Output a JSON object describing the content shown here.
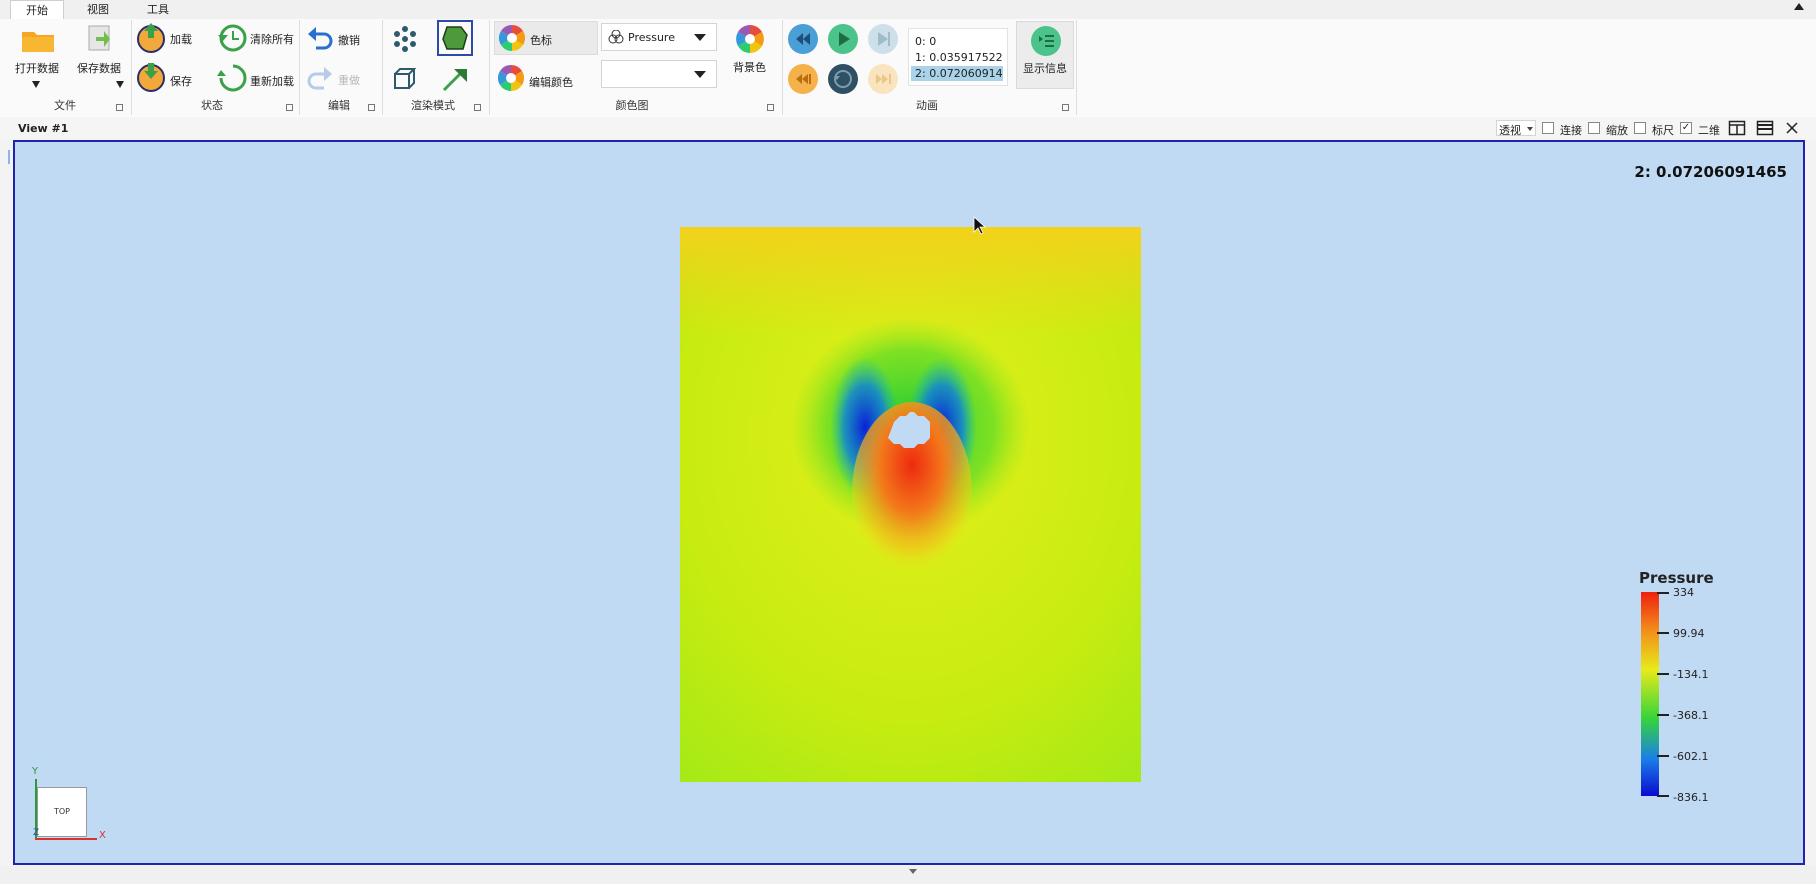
{
  "tabs": [
    "开始",
    "视图",
    "工具"
  ],
  "file_group": {
    "open_label": "打开数据",
    "save_data_label": "保存数据",
    "group_label": "文件"
  },
  "state_group": {
    "load_label": "加载",
    "clear_all_label": "清除所有",
    "save_label": "保存",
    "reload_label": "重新加载",
    "group_label": "状态"
  },
  "edit_group": {
    "undo_label": "撤销",
    "redo_label": "重做",
    "group_label": "编辑"
  },
  "render_group": {
    "group_label": "渲染模式"
  },
  "colormap_group": {
    "colorbar_label": "色标",
    "edit_color_label": "编辑颜色",
    "field_selected": "Pressure",
    "component_selected": "",
    "bg_color_label": "背景色",
    "group_label": "颜色图"
  },
  "animation_group": {
    "group_label": "动画",
    "show_info_label": "显示信息",
    "timesteps": [
      "0: 0",
      "1: 0.035917522...",
      "2: 0.072060914..."
    ],
    "selected_index": 2
  },
  "view": {
    "title": "View #1",
    "projection": "透视",
    "options": [
      {
        "label": "连接",
        "checked": false
      },
      {
        "label": "缩放",
        "checked": false
      },
      {
        "label": "标尺",
        "checked": false
      },
      {
        "label": "二维",
        "checked": true
      }
    ],
    "time_text": "2: 0.07206091465",
    "colorbar": {
      "title": "Pressure",
      "labels": [
        "334",
        "99.94",
        "-134.1",
        "-368.1",
        "-602.1",
        "-836.1"
      ]
    },
    "axes": {
      "y_label": "Y",
      "x_label": "X",
      "z_label": "Z",
      "cube_label": "TOP"
    }
  }
}
